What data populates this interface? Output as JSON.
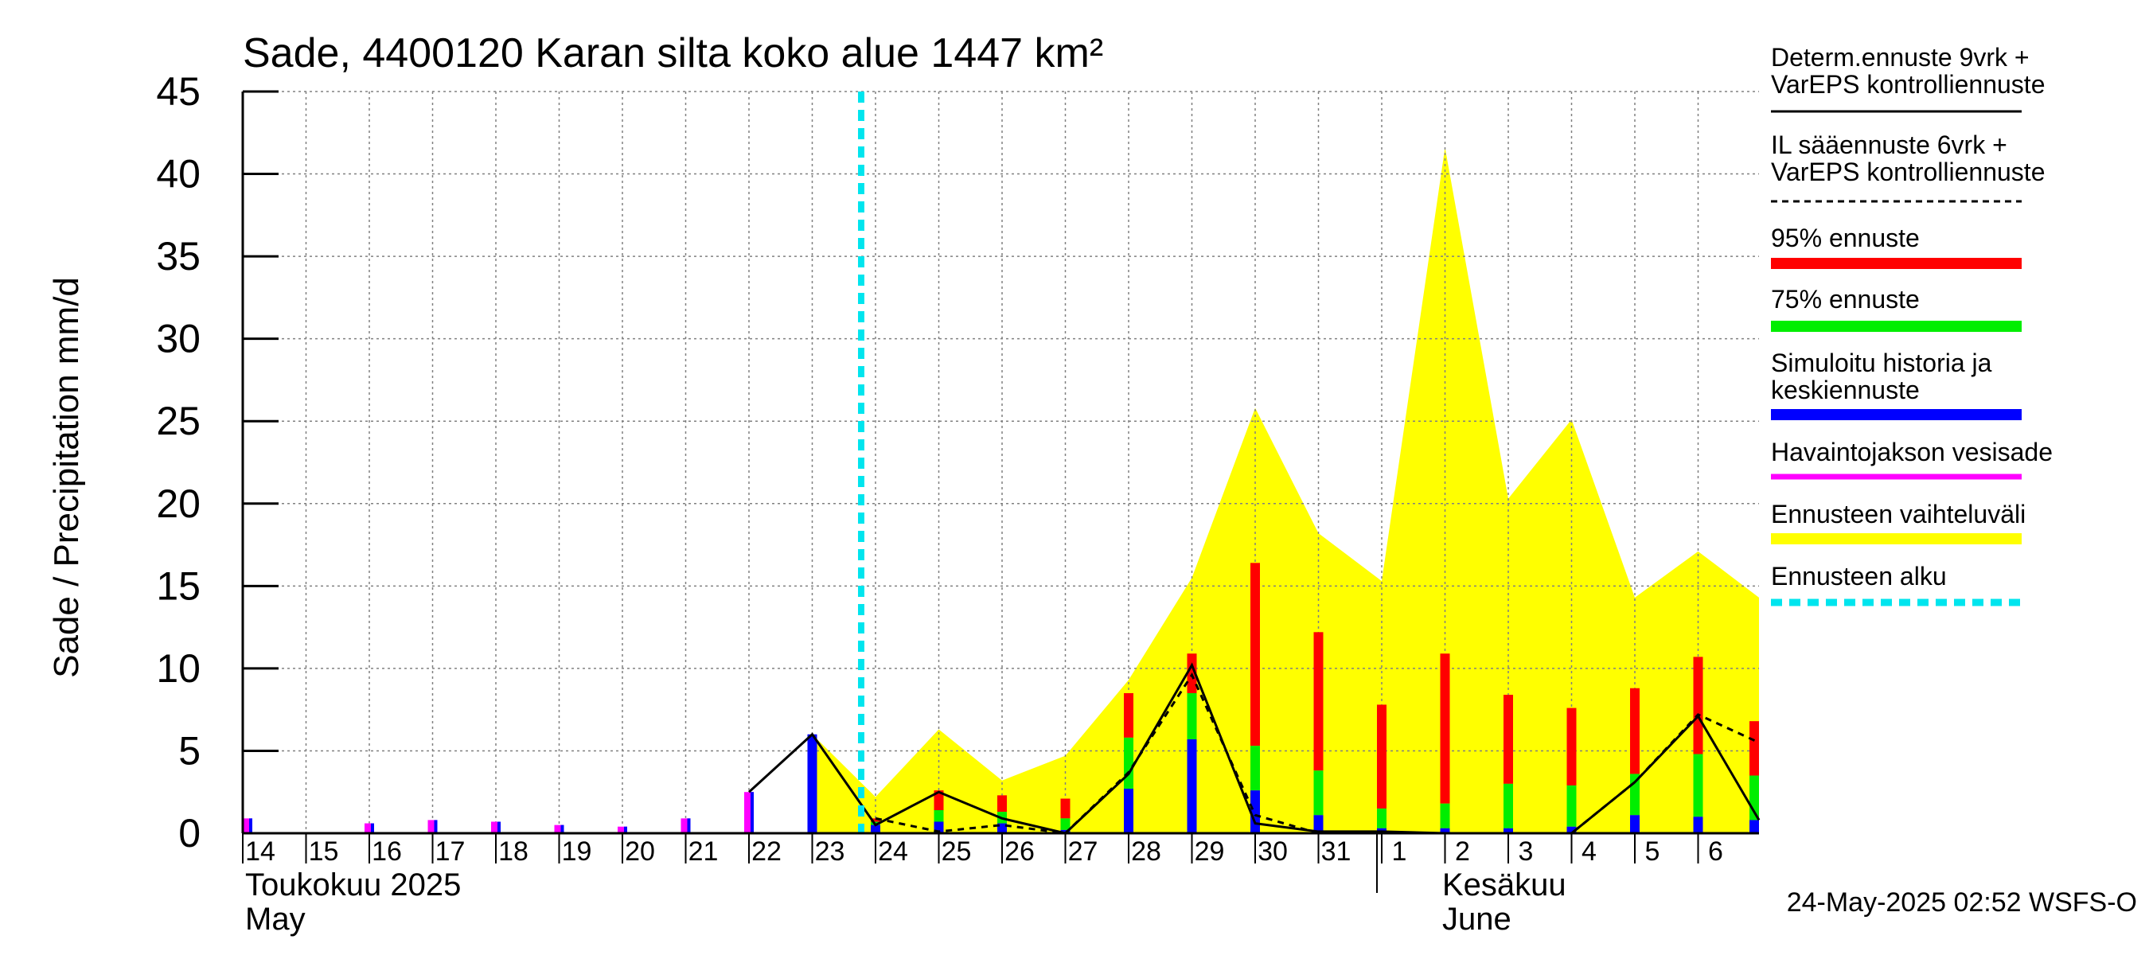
{
  "chart_data": {
    "type": "bar",
    "title": "Sade, 4400120 Karan silta koko alue 1447 km²",
    "ylabel": "Sade / Precipitation   mm/d",
    "ylim": [
      0,
      45
    ],
    "yticks": [
      0,
      5,
      10,
      15,
      20,
      25,
      30,
      35,
      40,
      45
    ],
    "x_start_day_index": 0,
    "x_end_day_index": 23.9,
    "day_labels": [
      "14",
      "15",
      "16",
      "17",
      "18",
      "19",
      "20",
      "21",
      "22",
      "23",
      "24",
      "25",
      "26",
      "27",
      "28",
      "29",
      "30",
      "31",
      "1",
      "2",
      "3",
      "4",
      "5",
      "6"
    ],
    "month_labels": {
      "may_fi": "Toukokuu  2025",
      "may_en": "May",
      "june_fi": "Kesäkuu",
      "june_en": "June"
    },
    "june_start_index": 18,
    "forecast_start_index": 10,
    "observed_precip": [
      {
        "day": 0,
        "value": 0.9
      },
      {
        "day": 2,
        "value": 0.6
      },
      {
        "day": 3,
        "value": 0.8
      },
      {
        "day": 4,
        "value": 0.7
      },
      {
        "day": 5,
        "value": 0.5
      },
      {
        "day": 6,
        "value": 0.4
      },
      {
        "day": 7,
        "value": 0.9
      },
      {
        "day": 8,
        "value": 2.5
      }
    ],
    "simulated_history": [
      {
        "day": 8,
        "value": 2.5
      },
      {
        "day": 9,
        "value": 6.0
      }
    ],
    "forecast_bars": [
      {
        "day": 10,
        "p50": 0.5,
        "p75": 0.7,
        "p95": 0.9
      },
      {
        "day": 11,
        "p50": 0.7,
        "p75": 1.4,
        "p95": 2.6
      },
      {
        "day": 12,
        "p50": 0.6,
        "p75": 1.3,
        "p95": 2.3
      },
      {
        "day": 13,
        "p50": 0.2,
        "p75": 0.9,
        "p95": 2.1
      },
      {
        "day": 14,
        "p50": 2.7,
        "p75": 5.8,
        "p95": 8.5
      },
      {
        "day": 15,
        "p50": 5.7,
        "p75": 8.5,
        "p95": 10.9
      },
      {
        "day": 16,
        "p50": 2.6,
        "p75": 5.3,
        "p95": 16.4
      },
      {
        "day": 17,
        "p50": 1.1,
        "p75": 3.8,
        "p95": 12.2
      },
      {
        "day": 18,
        "p50": 0.3,
        "p75": 1.5,
        "p95": 7.8
      },
      {
        "day": 19,
        "p50": 0.3,
        "p75": 1.8,
        "p95": 10.9
      },
      {
        "day": 20,
        "p50": 0.3,
        "p75": 3.0,
        "p95": 8.4
      },
      {
        "day": 21,
        "p50": 0.4,
        "p75": 2.9,
        "p95": 7.6
      },
      {
        "day": 22,
        "p50": 1.1,
        "p75": 3.6,
        "p95": 8.8
      },
      {
        "day": 23,
        "p50": 1.0,
        "p75": 4.8,
        "p95": 10.7
      },
      {
        "day": 24,
        "p50": 0.8,
        "p75": 3.5,
        "p95": 6.8
      }
    ],
    "ensemble_range": [
      {
        "day": 9,
        "value": 6.0
      },
      {
        "day": 10,
        "value": 2.2
      },
      {
        "day": 11,
        "value": 6.3
      },
      {
        "day": 12,
        "value": 3.2
      },
      {
        "day": 13,
        "value": 4.7
      },
      {
        "day": 14,
        "value": 9.3
      },
      {
        "day": 15,
        "value": 15.5
      },
      {
        "day": 16,
        "value": 25.8
      },
      {
        "day": 17,
        "value": 18.2
      },
      {
        "day": 18,
        "value": 15.3
      },
      {
        "day": 19,
        "value": 41.6
      },
      {
        "day": 20,
        "value": 20.3
      },
      {
        "day": 21,
        "value": 25.1
      },
      {
        "day": 22,
        "value": 14.3
      },
      {
        "day": 23,
        "value": 17.1
      },
      {
        "day": 24,
        "value": 14.3
      }
    ],
    "deterministic_line": [
      {
        "day": 8,
        "value": 2.5
      },
      {
        "day": 9,
        "value": 6.0
      },
      {
        "day": 10,
        "value": 0.5
      },
      {
        "day": 11,
        "value": 2.5
      },
      {
        "day": 12,
        "value": 0.9
      },
      {
        "day": 13,
        "value": 0.0
      },
      {
        "day": 14,
        "value": 3.6
      },
      {
        "day": 15,
        "value": 10.2
      },
      {
        "day": 16,
        "value": 0.6
      },
      {
        "day": 17,
        "value": 0.1
      },
      {
        "day": 18,
        "value": 0.1
      },
      {
        "day": 19,
        "value": 0.0
      },
      {
        "day": 20,
        "value": 0.0
      },
      {
        "day": 21,
        "value": 0.0
      },
      {
        "day": 22,
        "value": 3.1
      },
      {
        "day": 23,
        "value": 7.1
      },
      {
        "day": 24,
        "value": 0.8
      }
    ],
    "il_line": [
      {
        "day": 10,
        "value": 0.9
      },
      {
        "day": 11,
        "value": 0.1
      },
      {
        "day": 12,
        "value": 0.5
      },
      {
        "day": 13,
        "value": 0.0
      },
      {
        "day": 14,
        "value": 3.7
      },
      {
        "day": 15,
        "value": 9.6
      },
      {
        "day": 16,
        "value": 1.1
      },
      {
        "day": 17,
        "value": 0.0
      },
      {
        "day": 18,
        "value": 0.0
      },
      {
        "day": 19,
        "value": 0.0
      },
      {
        "day": 20,
        "value": 0.0
      },
      {
        "day": 21,
        "value": 0.0
      },
      {
        "day": 22,
        "value": 3.1
      },
      {
        "day": 23,
        "value": 7.2
      },
      {
        "day": 24,
        "value": 5.5
      }
    ],
    "colors": {
      "p95": "#ff0000",
      "p75": "#00ee00",
      "p50": "#0000ff",
      "observed": "#ff00ff",
      "ensemble": "#ffff00",
      "forecast_start": "#00e5ee",
      "grid": "#808080",
      "axis": "#000000"
    },
    "legend": [
      {
        "label": "Determ.ennuste 9vrk +\nVarEPS kontrolliennuste",
        "style": "solid-line"
      },
      {
        "label": "IL sääennuste 6vrk  +\n  VarEPS kontrolliennuste",
        "style": "dashed-line"
      },
      {
        "label": "95% ennuste",
        "style": "red-bar"
      },
      {
        "label": "75% ennuste",
        "style": "green-bar"
      },
      {
        "label": "Simuloitu historia ja\nkeskiennuste",
        "style": "blue-bar"
      },
      {
        "label": "Havaintojakson vesisade",
        "style": "magenta-bar"
      },
      {
        "label": "Ennusteen vaihteluväli",
        "style": "yellow-bar"
      },
      {
        "label": "Ennusteen alku",
        "style": "cyan-dashed"
      }
    ],
    "timestamp": "24-May-2025 02:52 WSFS-O"
  }
}
